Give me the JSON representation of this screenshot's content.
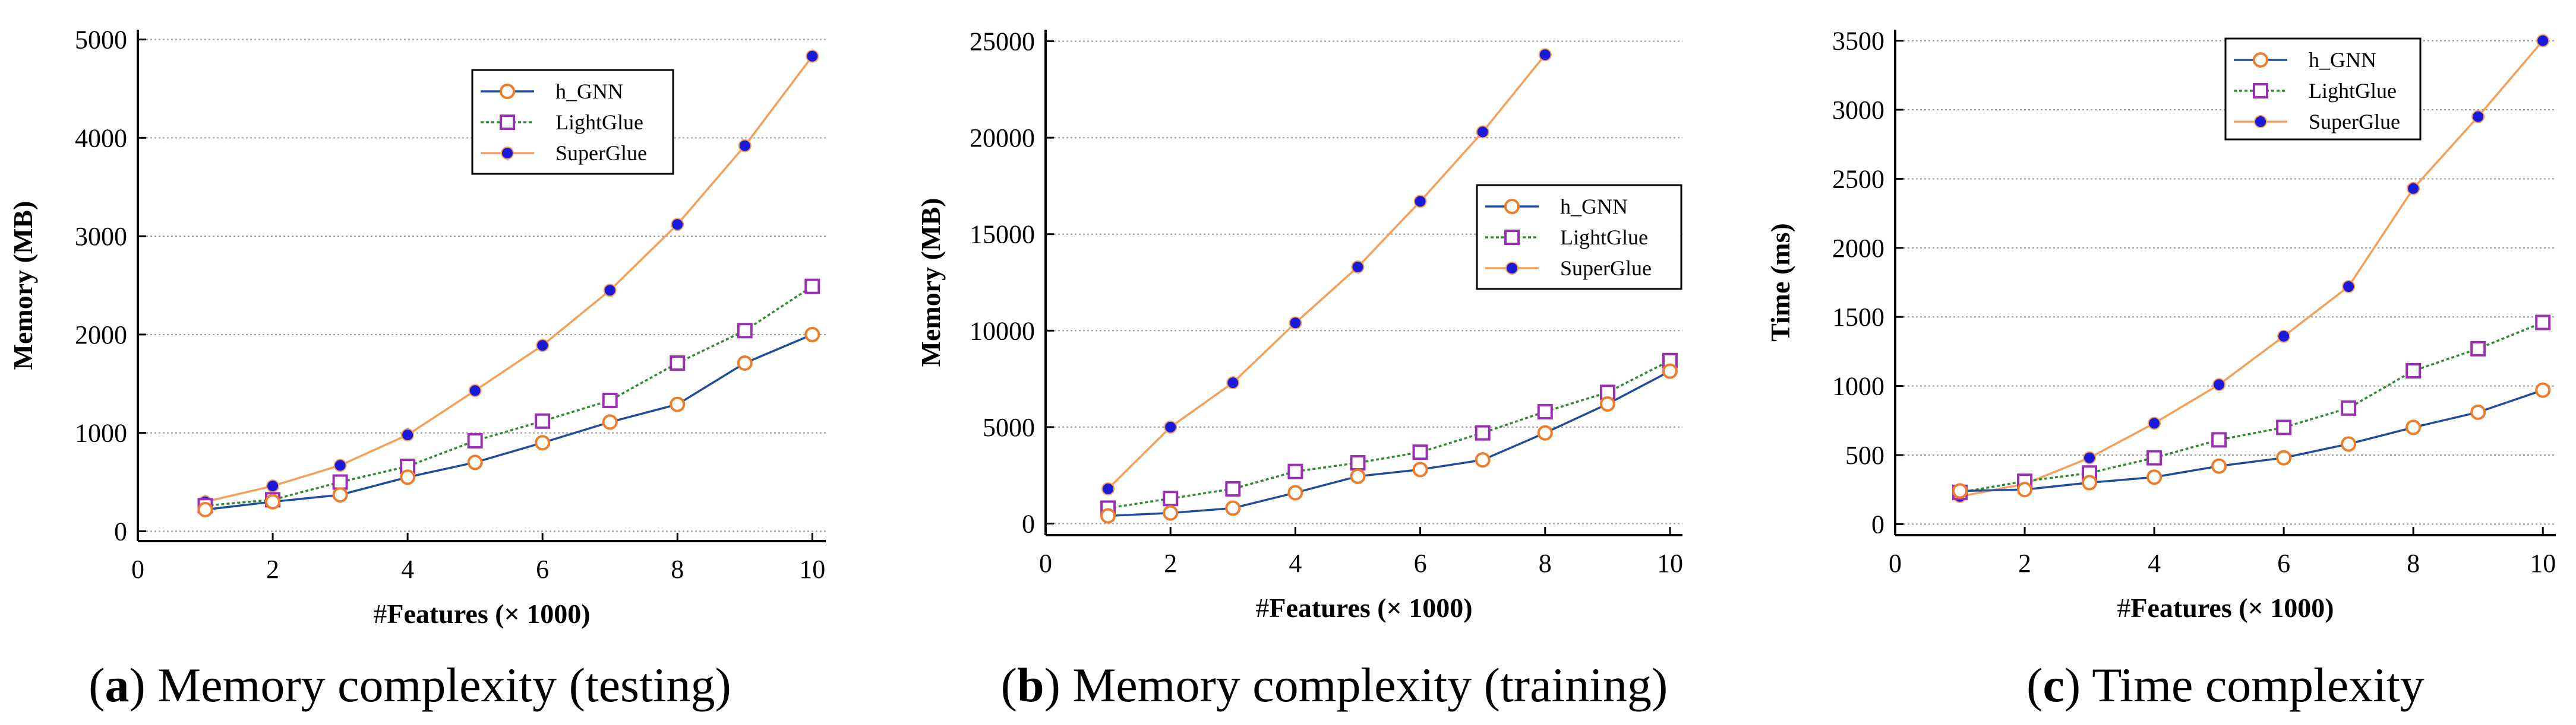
{
  "chart_data": [
    {
      "type": "line",
      "panel": "a",
      "caption_letter": "a",
      "caption_text": "Memory complexity (testing)",
      "xlabel_prefix": "#",
      "xlabel_bold": "Features (× 1000)",
      "ylabel": "Memory (MB)",
      "xlim": [
        0,
        10.2
      ],
      "ylim": [
        -100,
        5100
      ],
      "xticks": [
        0,
        2,
        4,
        6,
        8,
        10
      ],
      "yticks": [
        0,
        1000,
        2000,
        3000,
        4000,
        5000
      ],
      "grid": "horizontal",
      "legend_position": "upper-center",
      "x": [
        1,
        2,
        3,
        4,
        5,
        6,
        7,
        8,
        9,
        10
      ],
      "series": [
        {
          "name": "h_GNN",
          "color": "#1f4e9c",
          "marker_color": "#f07c2a",
          "marker": "circle",
          "dash": "solid",
          "values": [
            220,
            300,
            370,
            550,
            700,
            900,
            1110,
            1290,
            1710,
            2000
          ]
        },
        {
          "name": "LightGlue",
          "color": "#2e8b2e",
          "marker_color": "#9b2fb4",
          "marker": "square",
          "dash": "dotted",
          "values": [
            260,
            320,
            500,
            660,
            920,
            1120,
            1330,
            1710,
            2040,
            2490
          ]
        },
        {
          "name": "SuperGlue",
          "color": "#f5a05a",
          "marker_color": "#1a1adb",
          "marker": "dot",
          "dash": "solid",
          "values": [
            300,
            460,
            670,
            980,
            1430,
            1890,
            2450,
            3120,
            3920,
            4830
          ]
        }
      ]
    },
    {
      "type": "line",
      "panel": "b",
      "caption_letter": "b",
      "caption_text": "Memory complexity (training)",
      "xlabel_prefix": "#",
      "xlabel_bold": "Features (× 1000)",
      "ylabel": "Memory (MB)",
      "xlim": [
        0,
        10.2
      ],
      "ylim": [
        -600,
        25600
      ],
      "xticks": [
        0,
        2,
        4,
        6,
        8,
        10
      ],
      "yticks": [
        0,
        5000,
        10000,
        15000,
        20000,
        25000
      ],
      "grid": "horizontal",
      "legend_position": "center-right",
      "x": [
        1,
        2,
        3,
        4,
        5,
        6,
        7,
        8,
        9,
        10
      ],
      "series": [
        {
          "name": "h_GNN",
          "color": "#1f4e9c",
          "marker_color": "#f07c2a",
          "marker": "circle",
          "dash": "solid",
          "values": [
            400,
            550,
            800,
            1600,
            2450,
            2800,
            3300,
            4700,
            6200,
            7900
          ]
        },
        {
          "name": "LightGlue",
          "color": "#2e8b2e",
          "marker_color": "#9b2fb4",
          "marker": "square",
          "dash": "dotted",
          "values": [
            800,
            1300,
            1800,
            2700,
            3150,
            3700,
            4700,
            5800,
            6800,
            8450
          ]
        },
        {
          "name": "SuperGlue",
          "color": "#f5a05a",
          "marker_color": "#1a1adb",
          "marker": "dot",
          "dash": "solid",
          "values": [
            1800,
            5000,
            7300,
            10400,
            13300,
            16700,
            20300,
            24300,
            null,
            null
          ]
        }
      ]
    },
    {
      "type": "line",
      "panel": "c",
      "caption_letter": "c",
      "caption_text": "Time complexity",
      "xlabel_prefix": "#",
      "xlabel_bold": "Features (× 1000)",
      "ylabel": "Time (ms)",
      "xlim": [
        0,
        10.2
      ],
      "ylim": [
        -80,
        3580
      ],
      "xticks": [
        0,
        2,
        4,
        6,
        8,
        10
      ],
      "yticks": [
        0,
        500,
        1000,
        1500,
        2000,
        2500,
        3000,
        3500
      ],
      "grid": "horizontal",
      "legend_position": "upper-center",
      "x": [
        1,
        2,
        3,
        4,
        5,
        6,
        7,
        8,
        9,
        10
      ],
      "series": [
        {
          "name": "h_GNN",
          "color": "#1f4e9c",
          "marker_color": "#f07c2a",
          "marker": "circle",
          "dash": "solid",
          "values": [
            240,
            250,
            300,
            340,
            420,
            480,
            580,
            700,
            810,
            970
          ]
        },
        {
          "name": "LightGlue",
          "color": "#2e8b2e",
          "marker_color": "#9b2fb4",
          "marker": "square",
          "dash": "dotted",
          "values": [
            230,
            310,
            370,
            480,
            610,
            700,
            840,
            1110,
            1270,
            1460
          ]
        },
        {
          "name": "SuperGlue",
          "color": "#f5a05a",
          "marker_color": "#1a1adb",
          "marker": "dot",
          "dash": "solid",
          "values": [
            200,
            290,
            480,
            730,
            1010,
            1360,
            1720,
            2430,
            2950,
            3500
          ]
        }
      ]
    }
  ]
}
